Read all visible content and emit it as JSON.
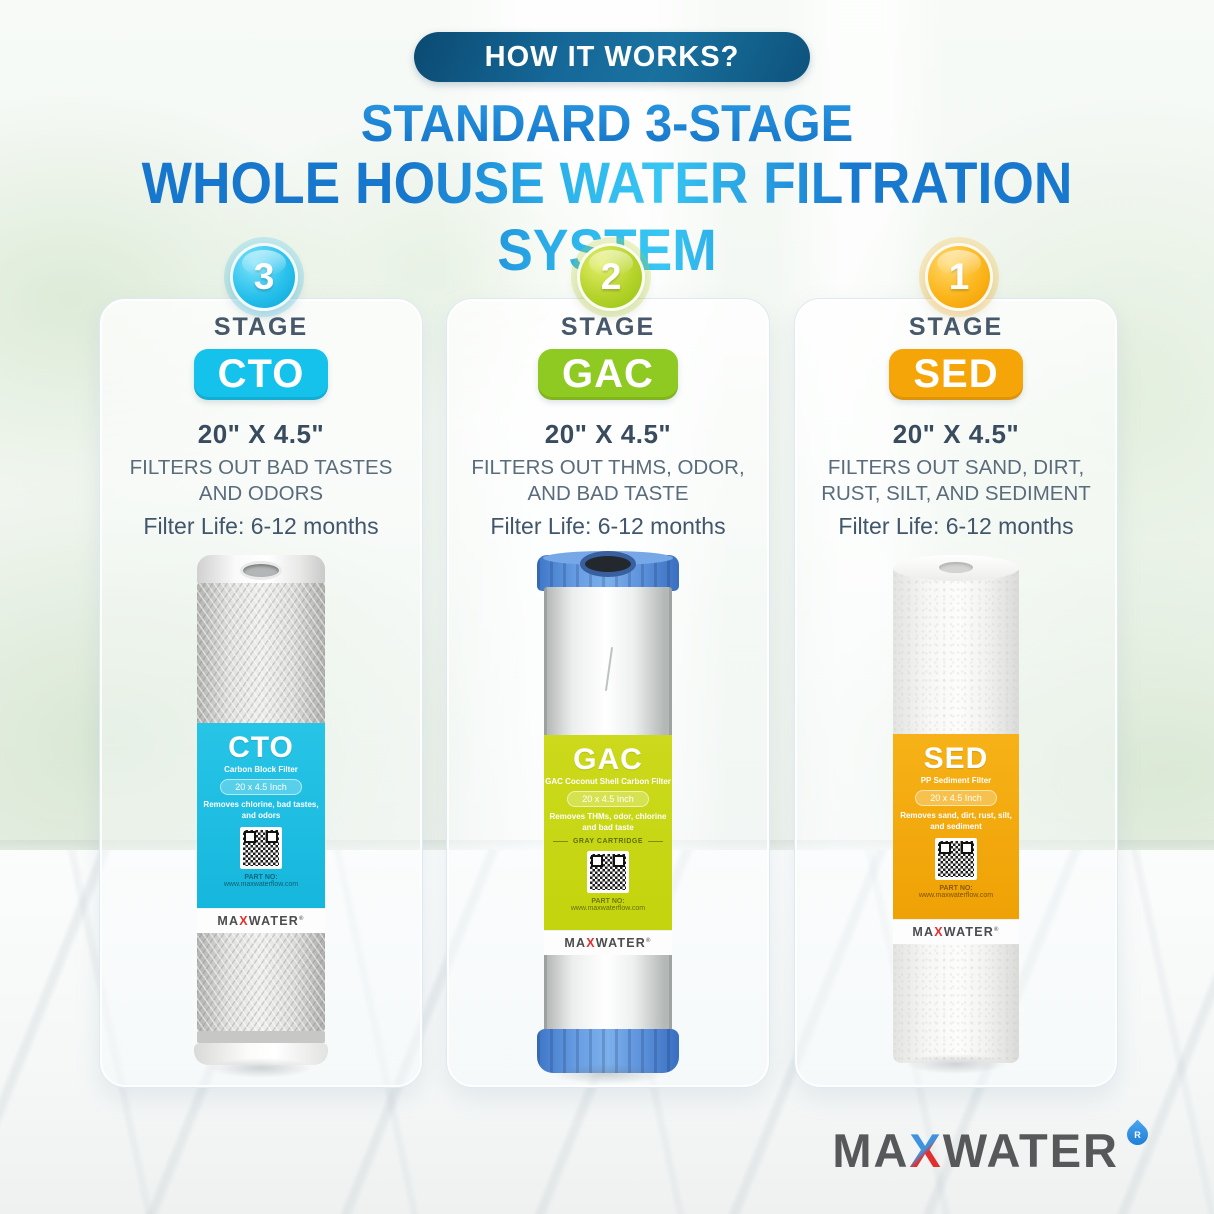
{
  "banner": {
    "label": "HOW IT WORKS?"
  },
  "title": {
    "line1": "STANDARD 3-STAGE",
    "line2": "WHOLE HOUSE WATER FILTRATION SYSTEM"
  },
  "stages": [
    {
      "number": "3",
      "stage_label": "STAGE",
      "code": "CTO",
      "size": "20\" X 4.5\"",
      "description": "FILTERS OUT BAD TASTES\nAND ODORS",
      "filter_life": "Filter Life: 6-12 months",
      "accent_color": "#15c2ec",
      "label": {
        "code": "CTO",
        "type": "Carbon Block Filter",
        "size": "20 x 4.5 Inch",
        "removes": "Removes chlorine, bad tastes,\nand odors",
        "part_no": "PART NO:",
        "url": "www.maxwaterflow.com"
      }
    },
    {
      "number": "2",
      "stage_label": "STAGE",
      "code": "GAC",
      "size": "20\" X 4.5\"",
      "description": "FILTERS OUT THMS, ODOR,\nAND BAD TASTE",
      "filter_life": "Filter Life: 6-12 months",
      "accent_color": "#8fca22",
      "label": {
        "code": "GAC",
        "type": "GAC Coconut Shell Carbon Filter",
        "size": "20 x 4.5 Inch",
        "removes": "Removes THMs, odor, chlorine\nand bad taste",
        "cartridge_note": "GRAY CARTRIDGE",
        "part_no": "PART NO:",
        "url": "www.maxwaterflow.com"
      }
    },
    {
      "number": "1",
      "stage_label": "STAGE",
      "code": "SED",
      "size": "20\" X 4.5\"",
      "description": "FILTERS OUT SAND, DIRT,\nRUST, SILT, AND SEDIMENT",
      "filter_life": "Filter Life: 6-12 months",
      "accent_color": "#f6a509",
      "label": {
        "code": "SED",
        "type": "PP Sediment Filter",
        "size": "20 x 4.5 Inch",
        "removes": "Removes sand, dirt, rust, silt,\nand sediment",
        "part_no": "PART NO:",
        "url": "www.maxwaterflow.com"
      }
    }
  ],
  "brand_small": {
    "prefix": "MA",
    "x": "X",
    "suffix": "WATER",
    "registered": "®"
  },
  "footer_logo": {
    "prefix": "MA",
    "x": "X",
    "suffix": "WATER",
    "registered": "R"
  },
  "colors": {
    "banner_navy": "#13648f",
    "title_blue": "#1b82d4",
    "stage_text": "#47586a",
    "cto_cyan": "#15c2ec",
    "gac_green": "#8fca22",
    "sed_orange": "#f6a509"
  }
}
